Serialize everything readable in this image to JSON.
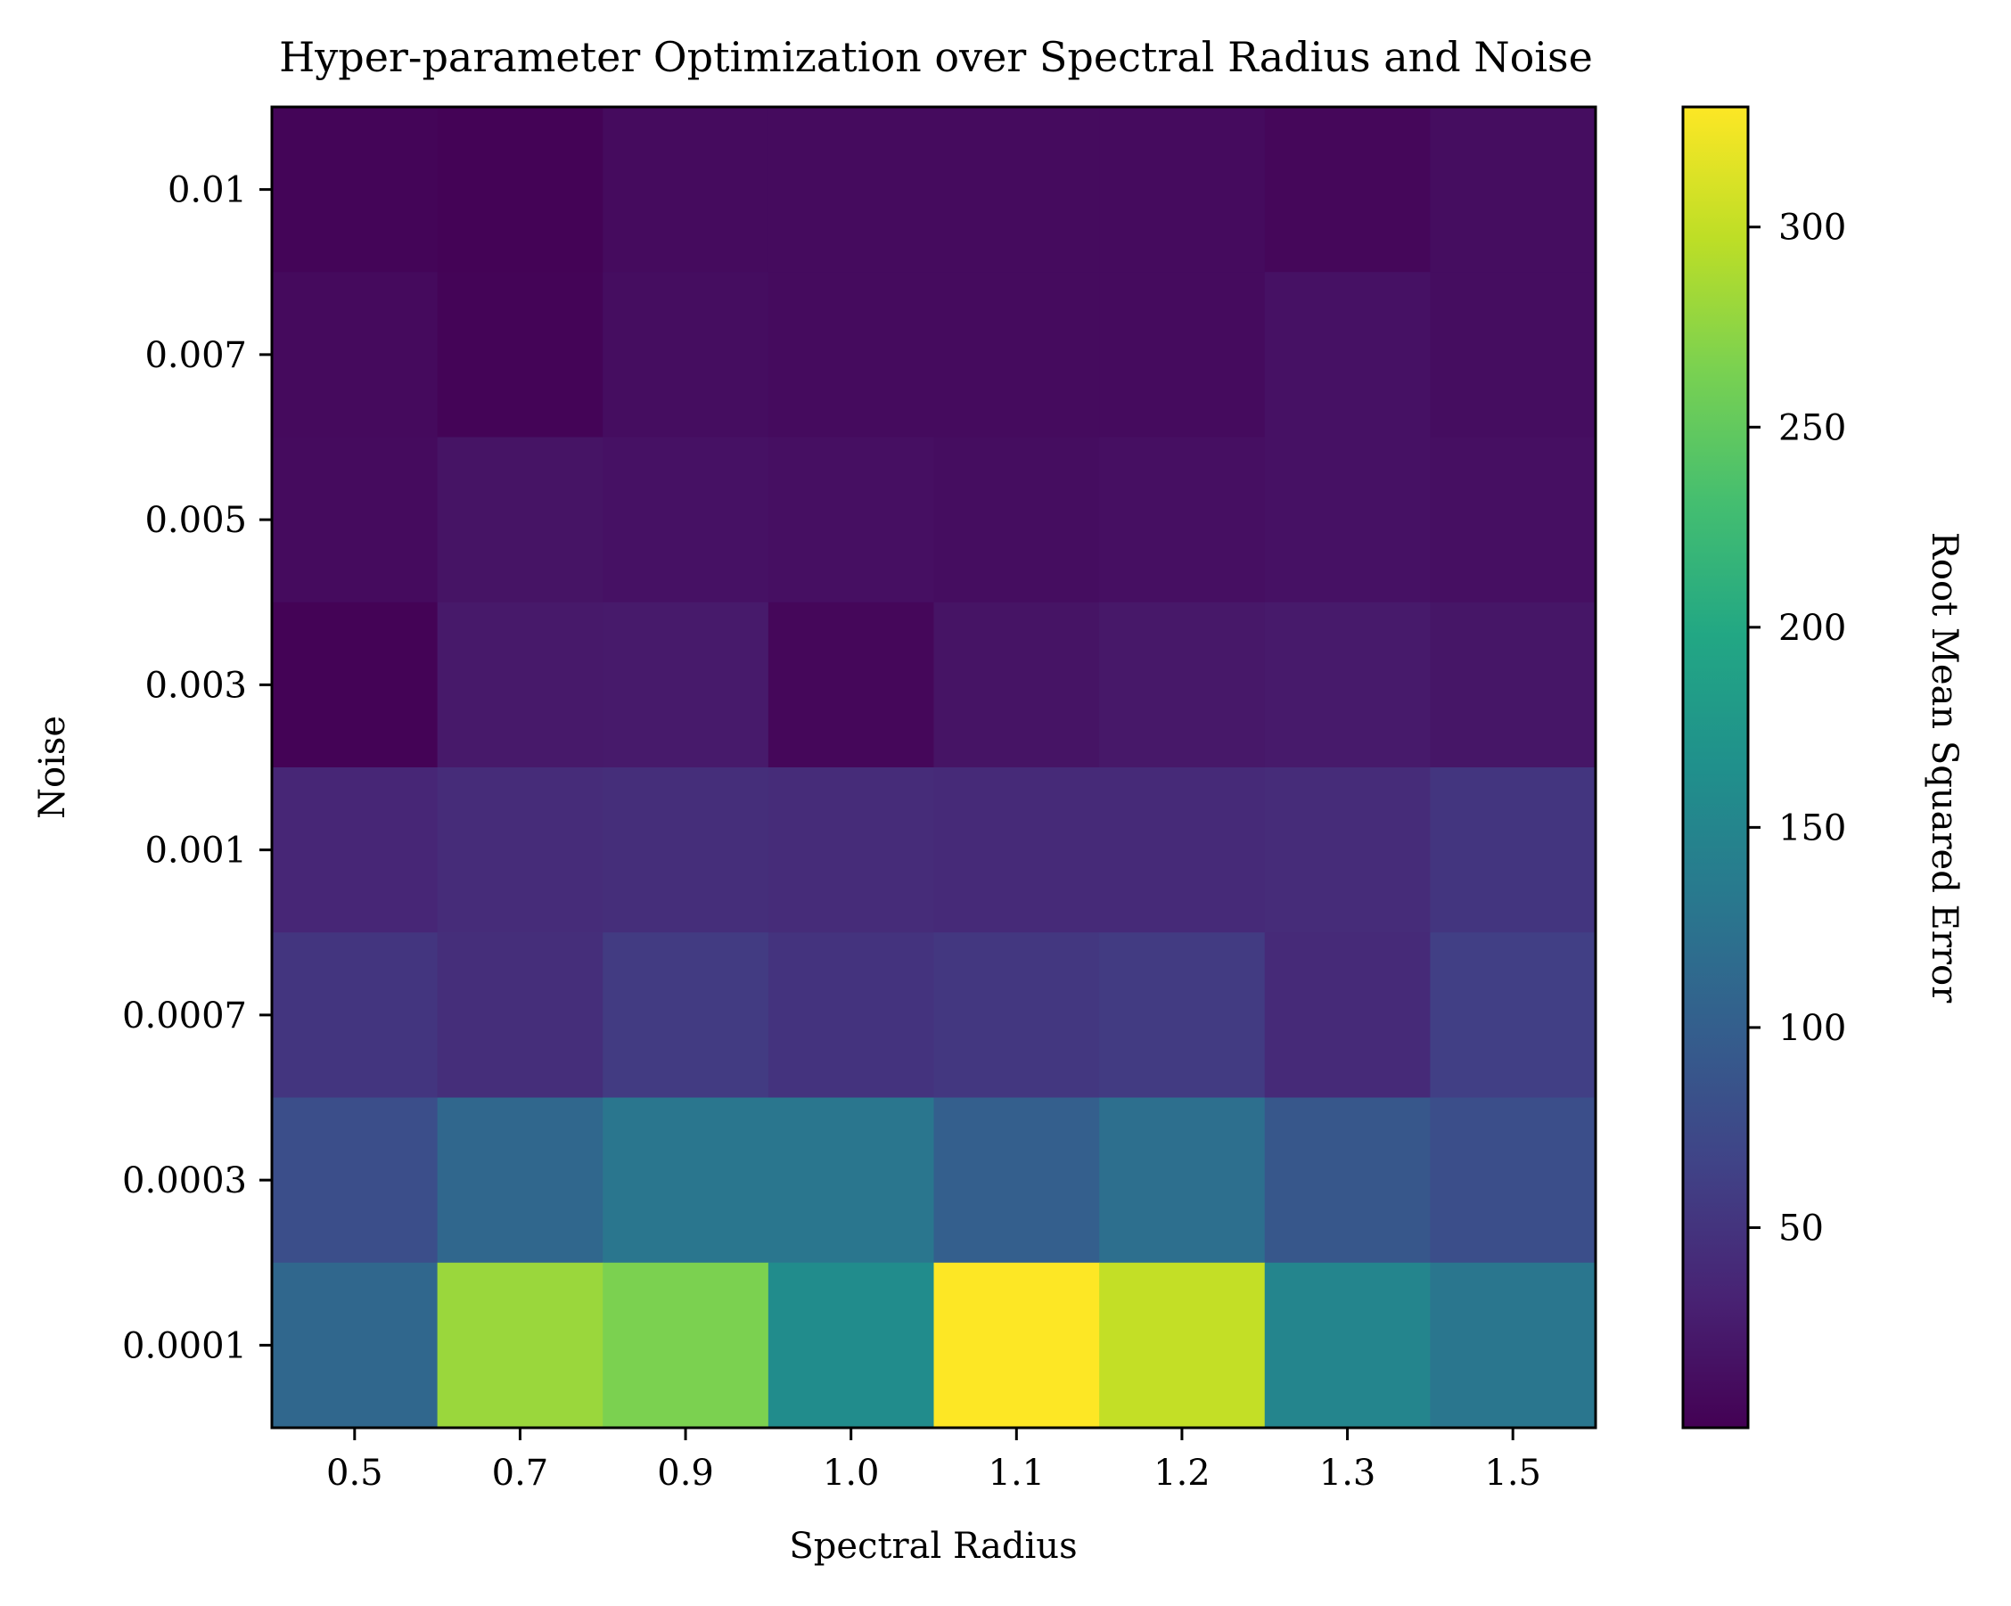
{
  "chart_data": {
    "type": "heatmap",
    "title": "Hyper-parameter Optimization over Spectral Radius and Noise",
    "xlabel": "Spectral Radius",
    "ylabel": "Noise",
    "x": [
      "0.5",
      "0.7",
      "0.9",
      "1.0",
      "1.1",
      "1.2",
      "1.3",
      "1.5"
    ],
    "y": [
      "0.01",
      "0.007",
      "0.005",
      "0.003",
      "0.001",
      "0.0007",
      "0.0003",
      "0.0001"
    ],
    "values": [
      [
        4,
        2,
        10,
        10,
        10,
        10,
        6,
        12
      ],
      [
        9,
        3,
        12,
        10,
        10,
        10,
        16,
        12
      ],
      [
        10,
        18,
        16,
        14,
        12,
        14,
        16,
        14
      ],
      [
        2,
        23,
        24,
        6,
        18,
        22,
        24,
        20
      ],
      [
        36,
        42,
        44,
        42,
        40,
        40,
        42,
        52
      ],
      [
        52,
        44,
        58,
        50,
        54,
        58,
        40,
        62
      ],
      [
        80,
        110,
        130,
        130,
        100,
        120,
        90,
        80
      ],
      [
        110,
        280,
        265,
        160,
        330,
        300,
        150,
        130
      ]
    ],
    "colorbar": {
      "label": "Root Mean Squared Error",
      "min": 0,
      "max": 330,
      "ticks": [
        "50",
        "100",
        "150",
        "200",
        "250",
        "300"
      ],
      "colormap": "viridis"
    }
  }
}
